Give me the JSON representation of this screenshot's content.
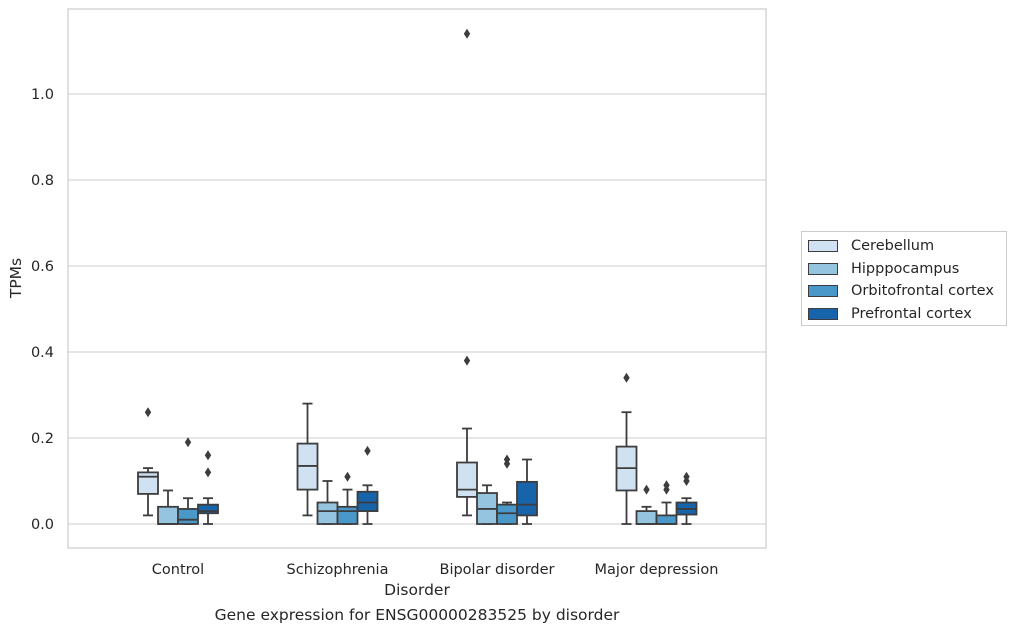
{
  "chart_data": {
    "type": "box",
    "xlabel": "Disorder",
    "ylabel": "TPMs",
    "caption": "Gene expression for ENSG00000283525 by disorder",
    "categories": [
      "Control",
      "Schizophrenia",
      "Bipolar disorder",
      "Major depression"
    ],
    "ylim": [
      -0.055,
      1.2
    ],
    "yticks": [
      0.0,
      0.2,
      0.4,
      0.6,
      0.8,
      1.0
    ],
    "ytick_labels": [
      "0.0",
      "0.2",
      "0.4",
      "0.6",
      "0.8",
      "1.0"
    ],
    "grid": "horizontal",
    "legend_position": "right",
    "series": [
      {
        "name": "Cerebellum",
        "color": "#d0e1f2",
        "boxes": [
          {
            "whisker_low": 0.02,
            "q1": 0.07,
            "median": 0.11,
            "q3": 0.12,
            "whisker_high": 0.13,
            "outliers": [
              0.26
            ]
          },
          {
            "whisker_low": 0.02,
            "q1": 0.08,
            "median": 0.135,
            "q3": 0.187,
            "whisker_high": 0.28,
            "outliers": []
          },
          {
            "whisker_low": 0.02,
            "q1": 0.063,
            "median": 0.08,
            "q3": 0.143,
            "whisker_high": 0.222,
            "outliers": [
              0.38,
              1.14
            ]
          },
          {
            "whisker_low": 0.0,
            "q1": 0.078,
            "median": 0.13,
            "q3": 0.18,
            "whisker_high": 0.26,
            "outliers": [
              0.34
            ]
          }
        ]
      },
      {
        "name": "Hipppocampus",
        "color": "#94c4df",
        "boxes": [
          {
            "whisker_low": 0.0,
            "q1": 0.0,
            "median": 0.0,
            "q3": 0.04,
            "whisker_high": 0.078,
            "outliers": []
          },
          {
            "whisker_low": 0.0,
            "q1": 0.0,
            "median": 0.03,
            "q3": 0.05,
            "whisker_high": 0.1,
            "outliers": []
          },
          {
            "whisker_low": 0.0,
            "q1": 0.0,
            "median": 0.035,
            "q3": 0.072,
            "whisker_high": 0.09,
            "outliers": []
          },
          {
            "whisker_low": 0.0,
            "q1": 0.0,
            "median": 0.0,
            "q3": 0.03,
            "whisker_high": 0.04,
            "outliers": [
              0.08
            ]
          }
        ]
      },
      {
        "name": "Orbitofrontal cortex",
        "color": "#4a98c9",
        "boxes": [
          {
            "whisker_low": 0.0,
            "q1": 0.0,
            "median": 0.01,
            "q3": 0.035,
            "whisker_high": 0.06,
            "outliers": [
              0.19
            ]
          },
          {
            "whisker_low": 0.0,
            "q1": 0.0,
            "median": 0.03,
            "q3": 0.04,
            "whisker_high": 0.08,
            "outliers": [
              0.11
            ]
          },
          {
            "whisker_low": 0.0,
            "q1": 0.0,
            "median": 0.025,
            "q3": 0.045,
            "whisker_high": 0.05,
            "outliers": [
              0.14,
              0.15
            ]
          },
          {
            "whisker_low": 0.0,
            "q1": 0.0,
            "median": 0.0,
            "q3": 0.02,
            "whisker_high": 0.05,
            "outliers": [
              0.08,
              0.09
            ]
          }
        ]
      },
      {
        "name": "Prefrontal cortex",
        "color": "#1764ab",
        "boxes": [
          {
            "whisker_low": 0.0,
            "q1": 0.025,
            "median": 0.03,
            "q3": 0.045,
            "whisker_high": 0.06,
            "outliers": [
              0.12,
              0.16
            ]
          },
          {
            "whisker_low": 0.0,
            "q1": 0.03,
            "median": 0.05,
            "q3": 0.075,
            "whisker_high": 0.09,
            "outliers": [
              0.17
            ]
          },
          {
            "whisker_low": 0.0,
            "q1": 0.02,
            "median": 0.045,
            "q3": 0.098,
            "whisker_high": 0.15,
            "outliers": []
          },
          {
            "whisker_low": 0.0,
            "q1": 0.022,
            "median": 0.035,
            "q3": 0.05,
            "whisker_high": 0.06,
            "outliers": [
              0.1,
              0.11
            ]
          }
        ]
      }
    ]
  },
  "legend": {
    "items": [
      {
        "label": "Cerebellum",
        "color": "#d0e1f2"
      },
      {
        "label": "Hipppocampus",
        "color": "#94c4df"
      },
      {
        "label": "Orbitofrontal cortex",
        "color": "#4a98c9"
      },
      {
        "label": "Prefrontal cortex",
        "color": "#1764ab"
      }
    ]
  }
}
